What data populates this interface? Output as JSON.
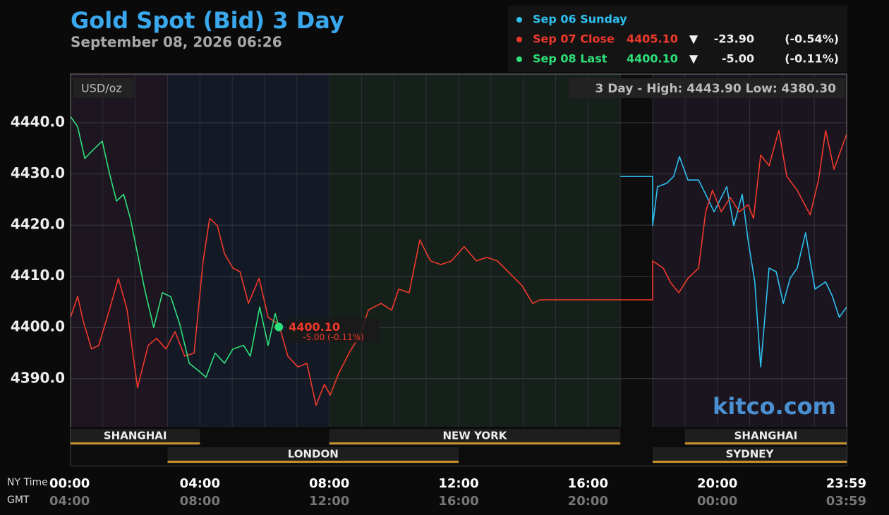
{
  "chart_data": {
    "type": "line",
    "title": "Gold Spot (Bid) 3 Day",
    "subtitle": "September 08, 2026 06:26",
    "unit_label": "USD/oz",
    "range_note": "3 Day - High: 4443.90  Low: 4380.30",
    "watermark": "kitco.com",
    "x_axis_label": "NY Time",
    "x2_axis_label": "GMT",
    "xlim": [
      0,
      24
    ],
    "xticks": [
      {
        "value": 0,
        "label": "00:00"
      },
      {
        "value": 4,
        "label": "04:00"
      },
      {
        "value": 8,
        "label": "08:00"
      },
      {
        "value": 12,
        "label": "12:00"
      },
      {
        "value": 16,
        "label": "16:00"
      },
      {
        "value": 20,
        "label": "20:00"
      },
      {
        "value": 23.98,
        "label": "23:59"
      }
    ],
    "x2ticks": [
      {
        "value": 0,
        "label": "04:00"
      },
      {
        "value": 4,
        "label": "08:00"
      },
      {
        "value": 8,
        "label": "12:00"
      },
      {
        "value": 12,
        "label": "16:00"
      },
      {
        "value": 16,
        "label": "20:00"
      },
      {
        "value": 20,
        "label": "00:00"
      },
      {
        "value": 23.98,
        "label": "03:59"
      }
    ],
    "ylim": [
      4380.6,
      4449.5
    ],
    "yticks": [
      {
        "value": 4390,
        "label": "4390.0"
      },
      {
        "value": 4400,
        "label": "4400.0"
      },
      {
        "value": 4410,
        "label": "4410.0"
      },
      {
        "value": 4420,
        "label": "4420.0"
      },
      {
        "value": 4430,
        "label": "4430.0"
      },
      {
        "value": 4440,
        "label": "4440.0"
      }
    ],
    "grid": true,
    "bands": [
      {
        "start": 0,
        "end": 3,
        "color": "#1d1520"
      },
      {
        "start": 3,
        "end": 8,
        "color": "#131a26"
      },
      {
        "start": 8,
        "end": 17,
        "color": "#16201a"
      },
      {
        "start": 17,
        "end": 18,
        "color": "#0d0d0d"
      },
      {
        "start": 18,
        "end": 24,
        "color": "#1b1520"
      }
    ],
    "sessions": [
      {
        "name": "SHANGHAI",
        "start": 0,
        "end": 4,
        "row": 1
      },
      {
        "name": "NEW YORK",
        "start": 8,
        "end": 17,
        "row": 1
      },
      {
        "name": "SHANGHAI",
        "start": 19,
        "end": 24,
        "row": 1
      },
      {
        "name": "LONDON",
        "start": 3,
        "end": 12,
        "row": 2
      },
      {
        "name": "SYDNEY",
        "start": 18,
        "end": 24,
        "row": 2
      }
    ],
    "series": [
      {
        "name": "Sep 06 Sunday",
        "color": "#2ec0f0",
        "x": [
          17,
          18,
          18,
          18.15,
          18.44,
          18.65,
          18.83,
          19.09,
          19.42,
          19.64,
          19.9,
          20.29,
          20.51,
          20.77,
          20.95,
          21.16,
          21.34,
          21.6,
          21.82,
          22.04,
          22.25,
          22.47,
          22.73,
          23.02,
          23.35,
          23.56,
          23.77,
          24
        ],
        "values": [
          4429.5,
          4429.5,
          4419.9,
          4427.5,
          4428.2,
          4429.5,
          4433.4,
          4428.8,
          4428.8,
          4426,
          4422.6,
          4427.5,
          4419.9,
          4426,
          4417.1,
          4408.9,
          4392.3,
          4411.6,
          4410.9,
          4404.7,
          4409.6,
          4411.6,
          4418.5,
          4407.5,
          4408.9,
          4406.1,
          4402,
          4404
        ]
      },
      {
        "name": "Sep 07 Close",
        "color": "#f0392b",
        "price": {
          "value": 4405.1,
          "label": "4405.10"
        },
        "arrow": "▼",
        "change": {
          "value": -23.9,
          "label": "-23.90"
        },
        "change_pct": {
          "value": -0.54,
          "label": "(-0.54%)"
        },
        "x": [
          0,
          0.22,
          0.39,
          0.65,
          0.87,
          1.2,
          1.48,
          1.75,
          2.07,
          2.4,
          2.66,
          2.95,
          3.23,
          3.53,
          3.82,
          4.1,
          4.3,
          4.54,
          4.76,
          5.02,
          5.24,
          5.5,
          5.83,
          6.11,
          6.44,
          6.72,
          7.03,
          7.31,
          7.59,
          7.85,
          8.03,
          8.29,
          8.62,
          8.95,
          9.21,
          9.6,
          9.93,
          10.15,
          10.47,
          10.8,
          11.13,
          11.45,
          11.78,
          12.17,
          12.55,
          12.87,
          13.2,
          13.53,
          13.96,
          14.29,
          14.51,
          18,
          18,
          18.33,
          18.55,
          18.81,
          19.09,
          19.42,
          19.64,
          19.85,
          20.12,
          20.4,
          20.68,
          20.95,
          21.12,
          21.34,
          21.6,
          21.9,
          22.15,
          22.47,
          22.87,
          23.13,
          23.35,
          23.61,
          24
        ],
        "values": [
          4402,
          4406.1,
          4401.3,
          4395.8,
          4396.5,
          4403.4,
          4409.6,
          4403.4,
          4388.2,
          4396.5,
          4397.9,
          4395.8,
          4399.2,
          4394.4,
          4395,
          4413,
          4421.3,
          4419.9,
          4414.4,
          4411.6,
          4410.9,
          4404.7,
          4409.6,
          4402,
          4400.6,
          4394.4,
          4392.3,
          4393,
          4384.8,
          4388.9,
          4386.8,
          4391,
          4395.1,
          4398.5,
          4403.4,
          4404.7,
          4403.4,
          4407.5,
          4406.8,
          4417.1,
          4413,
          4412.3,
          4413,
          4415.8,
          4413,
          4413.7,
          4413,
          4410.9,
          4408.2,
          4404.7,
          4405.4,
          4405.4,
          4413,
          4411.6,
          4408.8,
          4406.8,
          4409.6,
          4411.6,
          4422.6,
          4426.8,
          4422.6,
          4425.4,
          4422.6,
          4424,
          4421.3,
          4433.7,
          4431.6,
          4438.5,
          4429.5,
          4426.8,
          4422,
          4428.8,
          4438.5,
          4430.9,
          4437.8
        ]
      },
      {
        "name": "Sep 08 Last",
        "color": "#2ee07a",
        "price": {
          "value": 4400.1,
          "label": "4400.10"
        },
        "arrow": "▼",
        "change": {
          "value": -5,
          "label": "-5.00"
        },
        "change_pct": {
          "value": -0.11,
          "label": "(-0.11%)"
        },
        "x": [
          0,
          0.22,
          0.44,
          0.65,
          0.98,
          1.2,
          1.42,
          1.64,
          1.85,
          2.07,
          2.29,
          2.57,
          2.84,
          3.1,
          3.38,
          3.67,
          3.93,
          4.19,
          4.47,
          4.76,
          5.02,
          5.35,
          5.56,
          5.85,
          6.11,
          6.33,
          6.44
        ],
        "values": [
          4441.2,
          4439.2,
          4433,
          4434.4,
          4436.4,
          4430.2,
          4424.7,
          4426,
          4421.3,
          4414.4,
          4407.5,
          4400,
          4406.8,
          4406,
          4400.6,
          4393,
          4391.7,
          4390.3,
          4395,
          4393,
          4395.8,
          4396.5,
          4394.4,
          4404,
          4396.5,
          4402.7,
          4400.1
        ]
      }
    ],
    "marker_label": "4400.10",
    "marker_sublabel": "-5.00 (-0.11%)"
  }
}
